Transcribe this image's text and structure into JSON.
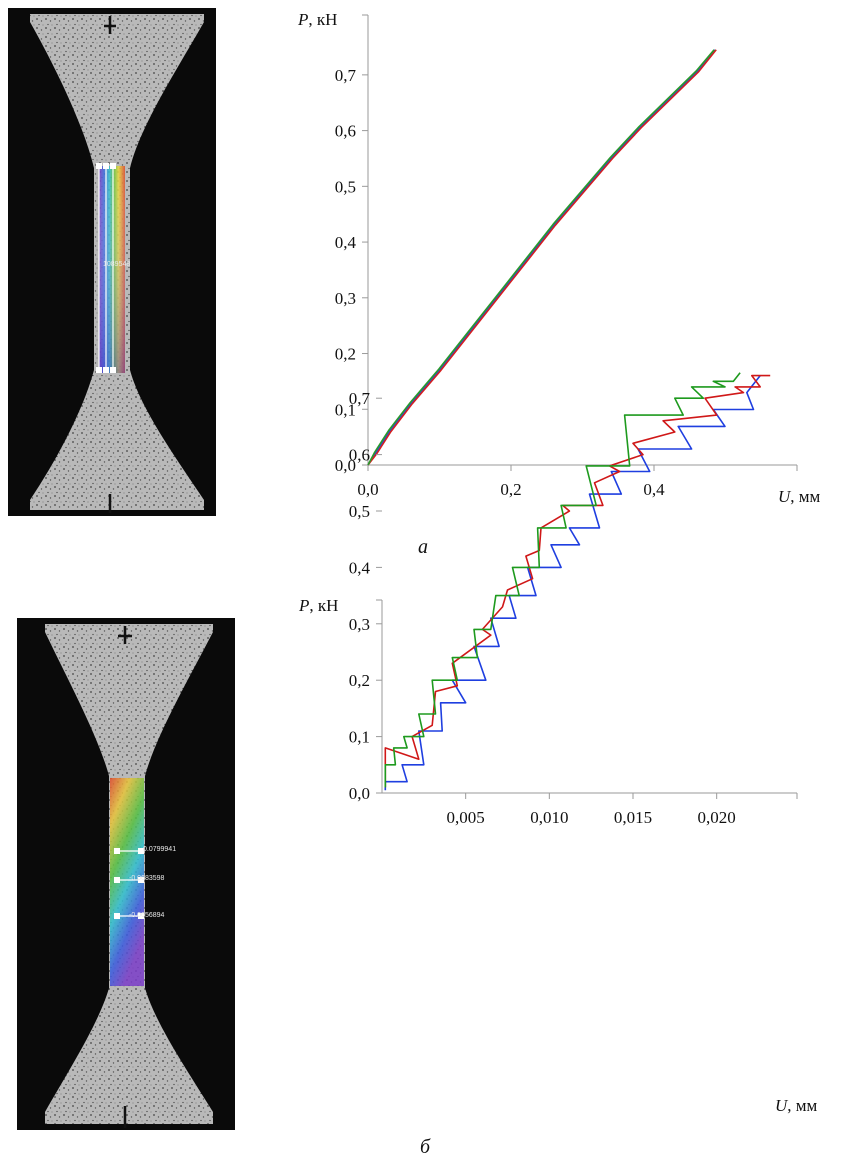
{
  "figures": [
    {
      "caption": "а",
      "photo_label": "1089548",
      "probe_labels": []
    },
    {
      "caption": "б",
      "photo_label": "",
      "probe_labels": [
        "0.0799941",
        "-0.0683598",
        "-0.0656894"
      ]
    }
  ],
  "chart_data": [
    {
      "type": "line",
      "title": "",
      "xlabel_sym": "U",
      "xlabel_unit": ", мм",
      "ylabel_sym": "P",
      "ylabel_unit": ", кН",
      "xlim": [
        0,
        0.6
      ],
      "ylim": [
        0,
        0.75
      ],
      "xticks": [
        0,
        0.2,
        0.4
      ],
      "xtick_labels": [
        "0,0",
        "0,2",
        "0,4"
      ],
      "yticks": [
        0,
        0.1,
        0.2,
        0.3,
        0.4,
        0.5,
        0.6,
        0.7
      ],
      "ytick_labels": [
        "0,0",
        "0,1",
        "0,2",
        "0,3",
        "0,4",
        "0,5",
        "0,6",
        "0,7"
      ],
      "grid": false,
      "series": [
        {
          "color": "#1f4fd8",
          "x": [
            0,
            0.01,
            0.03,
            0.06,
            0.1,
            0.14,
            0.18,
            0.22,
            0.26,
            0.3,
            0.34,
            0.38,
            0.42,
            0.46,
            0.485
          ],
          "y": [
            0,
            0.02,
            0.06,
            0.11,
            0.17,
            0.235,
            0.3,
            0.365,
            0.43,
            0.49,
            0.55,
            0.605,
            0.655,
            0.705,
            0.745
          ]
        },
        {
          "color": "#d42020",
          "x": [
            0,
            0.012,
            0.032,
            0.062,
            0.102,
            0.142,
            0.182,
            0.222,
            0.262,
            0.302,
            0.342,
            0.382,
            0.422,
            0.462,
            0.487
          ],
          "y": [
            0,
            0.02,
            0.06,
            0.11,
            0.17,
            0.235,
            0.3,
            0.365,
            0.43,
            0.49,
            0.55,
            0.605,
            0.655,
            0.705,
            0.745
          ]
        },
        {
          "color": "#2a9a2a",
          "x": [
            0,
            0.009,
            0.029,
            0.059,
            0.099,
            0.139,
            0.179,
            0.219,
            0.259,
            0.299,
            0.339,
            0.379,
            0.419,
            0.459,
            0.484
          ],
          "y": [
            0,
            0.022,
            0.062,
            0.112,
            0.172,
            0.237,
            0.302,
            0.367,
            0.432,
            0.492,
            0.552,
            0.607,
            0.657,
            0.707,
            0.745
          ]
        }
      ]
    },
    {
      "type": "line",
      "title": "",
      "xlabel_sym": "U",
      "xlabel_unit": ", мм",
      "ylabel_sym": "P",
      "ylabel_unit": ", кН",
      "xlim": [
        0,
        0.0248
      ],
      "ylim": [
        0,
        0.75
      ],
      "xticks": [
        0.005,
        0.01,
        0.015,
        0.02
      ],
      "xtick_labels": [
        "0,005",
        "0,010",
        "0,015",
        "0,020"
      ],
      "yticks": [
        0,
        0.1,
        0.2,
        0.3,
        0.4,
        0.5,
        0.6,
        0.7
      ],
      "ytick_labels": [
        "0,0",
        "0,1",
        "0,2",
        "0,3",
        "0,4",
        "0,5",
        "0,6",
        "0,7"
      ],
      "grid": false,
      "series": [
        {
          "color": "#1f3fe0",
          "x": [
            0.0002,
            0.0002,
            0.0015,
            0.0012,
            0.0025,
            0.0022,
            0.0036,
            0.0035,
            0.005,
            0.0042,
            0.0062,
            0.0055,
            0.007,
            0.0065,
            0.008,
            0.0076,
            0.0092,
            0.0087,
            0.0107,
            0.0101,
            0.0118,
            0.0112,
            0.013,
            0.0124,
            0.0143,
            0.0137,
            0.016,
            0.0153,
            0.0185,
            0.0177,
            0.0205,
            0.0198,
            0.0222,
            0.0218,
            0.0226
          ],
          "y": [
            0.005,
            0.02,
            0.02,
            0.05,
            0.05,
            0.11,
            0.11,
            0.16,
            0.16,
            0.2,
            0.2,
            0.26,
            0.26,
            0.31,
            0.31,
            0.35,
            0.35,
            0.4,
            0.4,
            0.44,
            0.44,
            0.47,
            0.47,
            0.53,
            0.53,
            0.57,
            0.57,
            0.61,
            0.61,
            0.65,
            0.65,
            0.68,
            0.68,
            0.71,
            0.74
          ]
        },
        {
          "color": "#d01818",
          "x": [
            0.0002,
            0.0002,
            0.0022,
            0.0018,
            0.003,
            0.0032,
            0.0045,
            0.0042,
            0.0065,
            0.006,
            0.0072,
            0.0075,
            0.009,
            0.0086,
            0.0094,
            0.0095,
            0.0112,
            0.0108,
            0.0132,
            0.0127,
            0.0142,
            0.0136,
            0.0156,
            0.015,
            0.0175,
            0.0168,
            0.02,
            0.0193,
            0.0216,
            0.0211,
            0.0226,
            0.0221,
            0.0232
          ],
          "y": [
            0.01,
            0.08,
            0.06,
            0.1,
            0.12,
            0.18,
            0.19,
            0.23,
            0.28,
            0.29,
            0.33,
            0.36,
            0.38,
            0.42,
            0.43,
            0.47,
            0.5,
            0.51,
            0.51,
            0.55,
            0.57,
            0.58,
            0.6,
            0.62,
            0.64,
            0.66,
            0.67,
            0.7,
            0.71,
            0.72,
            0.72,
            0.74,
            0.74
          ]
        },
        {
          "color": "#1e9a1e",
          "x": [
            0.0002,
            0.0002,
            0.0008,
            0.0007,
            0.0015,
            0.0013,
            0.0025,
            0.0022,
            0.0032,
            0.003,
            0.0045,
            0.0042,
            0.0057,
            0.0055,
            0.0065,
            0.0068,
            0.0082,
            0.0078,
            0.0094,
            0.0093,
            0.011,
            0.0107,
            0.0128,
            0.0122,
            0.0148,
            0.0145,
            0.018,
            0.0175,
            0.0192,
            0.0185,
            0.0205,
            0.0198,
            0.021,
            0.0214
          ],
          "y": [
            0.01,
            0.05,
            0.05,
            0.08,
            0.08,
            0.1,
            0.1,
            0.14,
            0.14,
            0.2,
            0.2,
            0.24,
            0.24,
            0.29,
            0.29,
            0.35,
            0.35,
            0.4,
            0.4,
            0.47,
            0.47,
            0.51,
            0.51,
            0.58,
            0.58,
            0.67,
            0.67,
            0.7,
            0.7,
            0.72,
            0.72,
            0.73,
            0.73,
            0.745
          ]
        }
      ]
    }
  ]
}
